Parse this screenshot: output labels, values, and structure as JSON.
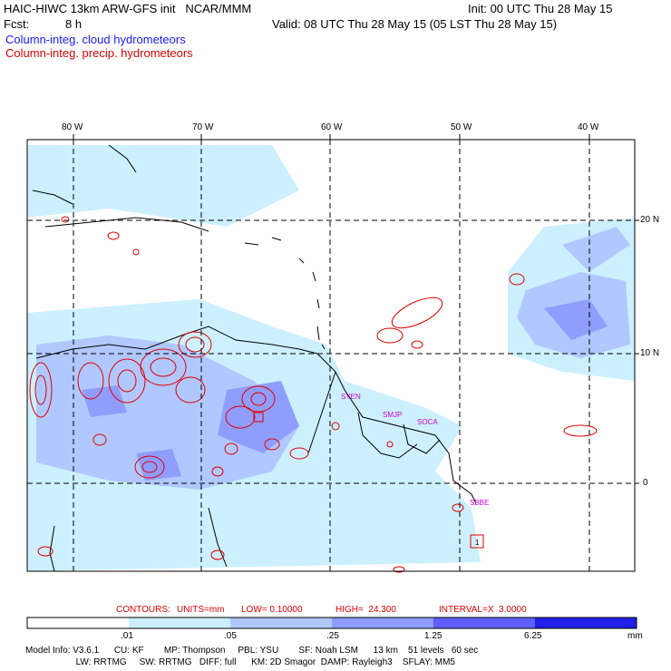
{
  "header": {
    "model_title": "HAIC-HIWC 13km ARW-GFS init   NCAR/MMM",
    "init": "Init: 00 UTC Thu 28 May 15",
    "fcst_label": "Fcst:",
    "fcst_value": "8 h",
    "valid": "Valid: 08 UTC Thu 28 May 15 (05 LST Thu 28 May 15)",
    "cloud_legend": "Column-integ. cloud hydrometeors",
    "precip_legend": "Column-integ. precip. hydrometeors"
  },
  "axes": {
    "lon_labels": [
      "80 W",
      "70 W",
      "60 W",
      "50 W",
      "40 W"
    ],
    "lat_labels": [
      "20 N",
      "10 N",
      "0"
    ]
  },
  "stations": [
    "SYEN",
    "SMJP",
    "SOCA",
    "SBBE",
    "1"
  ],
  "contours": {
    "prefix": "CONTOURS:",
    "units": "UNITS=mm",
    "low": "LOW= 0.10000",
    "high": "HIGH=  24.300",
    "interval": "INTERVAL=X  3.0000"
  },
  "colorbar": {
    "ticks": [
      ".01",
      ".05",
      ".25",
      "1.25",
      "6.25"
    ],
    "unit": "mm",
    "colors": [
      "#ffffff",
      "#ccf0ff",
      "#b0c8ff",
      "#8f9dff",
      "#5f5fff",
      "#2020e8"
    ]
  },
  "model_info": {
    "line1": "Model Info: V3.6.1      CU: KF        MP: Thompson     PBL: YSU        SF: Noah LSM      13 km    51 levels   60 sec",
    "line2": "                    LW: RRTMG     SW: RRTMG   DIFF: full      KM: 2D Smagor  DAMP: Rayleigh3    SFLAY: MM5"
  },
  "colors": {
    "cloud": "#1a1aff",
    "precip": "#e00000",
    "station": "#d000d0",
    "coast": "#000000"
  }
}
